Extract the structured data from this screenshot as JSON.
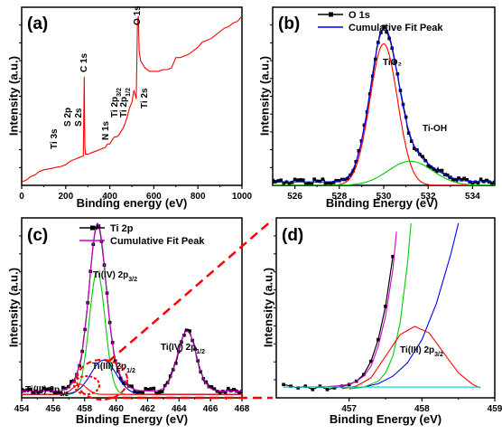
{
  "chart_data": [
    {
      "id": "a",
      "type": "line",
      "panel_label": "(a)",
      "xlabel": "Binding energy (eV)",
      "ylabel": "Intensity (a.u.)",
      "xlim": [
        0,
        1000
      ],
      "xticks": [
        0,
        200,
        400,
        600,
        800,
        1000
      ],
      "y_ticks_labeled": false,
      "series": [
        {
          "color": "#ff0000",
          "x": [
            0,
            20,
            40,
            60,
            80,
            100,
            120,
            140,
            160,
            180,
            200,
            220,
            240,
            260,
            280,
            284,
            287,
            290,
            300,
            320,
            340,
            360,
            380,
            390,
            400,
            410,
            420,
            430,
            440,
            450,
            460,
            470,
            480,
            490,
            500,
            510,
            520,
            526,
            530,
            533,
            540,
            560,
            580,
            600,
            620,
            640,
            660,
            680,
            700,
            720,
            740,
            760,
            780,
            800,
            820,
            840,
            860,
            880,
            900,
            920,
            940,
            960,
            980,
            1000
          ],
          "y": [
            2,
            3,
            5,
            6,
            8,
            9,
            9.5,
            10,
            10.5,
            11,
            12,
            14,
            15,
            16,
            17,
            63,
            22,
            18,
            18,
            19,
            20,
            21,
            22,
            24,
            24,
            26,
            28,
            28,
            29,
            31,
            33,
            36,
            40,
            45,
            48,
            55,
            50,
            95,
            98,
            78,
            72,
            68,
            66,
            66,
            66,
            67,
            67,
            68,
            74,
            74,
            75,
            76,
            78,
            80,
            83,
            84,
            85,
            87,
            89,
            91,
            92,
            94,
            95,
            98
          ]
        }
      ],
      "peak_labels": [
        {
          "text": "O 1s",
          "x": 530
        },
        {
          "text": "C 1s",
          "x": 285
        },
        {
          "text": "Ti 2s",
          "x": 565
        },
        {
          "text": "Ti 3s",
          "x": 60
        },
        {
          "text": "S 2p",
          "x": 162
        },
        {
          "text": "S 2s",
          "x": 230
        },
        {
          "text": "N 1s",
          "x": 400
        },
        {
          "text": "Ti 2p3/2",
          "x": 458
        },
        {
          "text": "Ti 2p1/2",
          "x": 464
        }
      ]
    },
    {
      "id": "b",
      "type": "line",
      "panel_label": "(b)",
      "xlabel": "Binding Energy (eV)",
      "ylabel": "Intensity (a.u.)",
      "xlim": [
        525,
        535
      ],
      "xticks": [
        526,
        528,
        530,
        532,
        534
      ],
      "y_ticks_labeled": false,
      "legend": {
        "placement": "top-right",
        "entries": [
          "O 1s",
          "Cumulative Fit Peak"
        ]
      },
      "series": [
        {
          "name": "O 1s",
          "color": "#000000",
          "marker": "square",
          "peaks": [
            {
              "center": 530.0,
              "sigma": 0.62,
              "height": 82
            },
            {
              "center": 531.2,
              "sigma": 1.0,
              "height": 14
            }
          ],
          "baseline": 2
        },
        {
          "name": "Cumulative Fit Peak",
          "color": "#0000ff",
          "peaks": [
            {
              "center": 530.0,
              "sigma": 0.62,
              "height": 82
            },
            {
              "center": 531.2,
              "sigma": 1.0,
              "height": 14
            }
          ],
          "baseline": 2
        },
        {
          "color": "#ff0000",
          "peaks": [
            {
              "center": 530.0,
              "sigma": 0.62,
              "height": 82
            }
          ],
          "baseline": 0
        },
        {
          "color": "#00cc00",
          "peaks": [
            {
              "center": 531.2,
              "sigma": 1.0,
              "height": 14
            }
          ],
          "baseline": 0
        }
      ],
      "peak_labels": [
        {
          "text": "TiO₂",
          "x": 530.2
        },
        {
          "text": "Ti-OH",
          "x": 531.6
        }
      ]
    },
    {
      "id": "c",
      "type": "line",
      "panel_label": "(c)",
      "xlabel": "Binding Energy (eV)",
      "ylabel": "Intensity (a.u.)",
      "xlim": [
        454,
        468
      ],
      "xticks": [
        454,
        456,
        458,
        460,
        462,
        464,
        466,
        468
      ],
      "y_ticks_labeled": false,
      "legend": {
        "placement": "top-right",
        "entries": [
          "Ti 2p",
          "Cumulative Fit Peak"
        ]
      },
      "series": [
        {
          "name": "Ti 2p",
          "color": "#000000",
          "marker": "square",
          "peaks": [
            {
              "center": 458.8,
              "sigma": 0.5,
              "height": 80
            },
            {
              "center": 459.2,
              "sigma": 0.8,
              "height": 20
            },
            {
              "center": 464.5,
              "sigma": 0.6,
              "height": 35
            },
            {
              "center": 457.7,
              "sigma": 0.45,
              "height": 6
            }
          ],
          "baseline": 2
        },
        {
          "name": "Cumulative Fit Peak",
          "color": "#cc00cc",
          "peaks": [
            {
              "center": 458.8,
              "sigma": 0.5,
              "height": 80
            },
            {
              "center": 459.2,
              "sigma": 0.8,
              "height": 20
            },
            {
              "center": 464.5,
              "sigma": 0.6,
              "height": 35
            },
            {
              "center": 457.7,
              "sigma": 0.45,
              "height": 6
            }
          ],
          "baseline": 2
        },
        {
          "color": "#00cc00",
          "peaks": [
            {
              "center": 458.8,
              "sigma": 0.5,
              "height": 72
            }
          ],
          "baseline": 0
        },
        {
          "color": "#0000ff",
          "peaks": [
            {
              "center": 459.2,
              "sigma": 0.8,
              "height": 20
            }
          ],
          "baseline": 0
        },
        {
          "color": "#ff0000",
          "peaks": [
            {
              "center": 457.7,
              "sigma": 0.45,
              "height": 6
            }
          ],
          "baseline": 0
        }
      ],
      "peak_labels": [
        {
          "text": "Ti(IV) 2p3/2",
          "x": 459.4
        },
        {
          "text": "Ti(IV) 2p1/2",
          "x": 464.5
        },
        {
          "text": "Ti(III) 2p1/2",
          "x": 459.5
        },
        {
          "text": "Ti(III) 2p3/2",
          "x": 455.3
        }
      ]
    },
    {
      "id": "d",
      "type": "line",
      "panel_label": "(d)",
      "xlabel": "Binding Energy (eV)",
      "ylabel": "Intensity (a.u.)",
      "xlim": [
        456,
        459
      ],
      "xticks": [
        457,
        458,
        459
      ],
      "y_ticks_labeled": false,
      "series": [
        {
          "color": "#000000",
          "marker": "square",
          "x": [
            456.1,
            456.2,
            456.3,
            456.4,
            456.5,
            456.6,
            456.7,
            456.8,
            456.9,
            457.0,
            457.1,
            457.2,
            457.3,
            457.4,
            457.5,
            457.6
          ],
          "y": [
            3,
            2,
            1,
            2,
            0,
            2,
            0,
            1,
            2,
            3,
            5,
            9,
            17,
            30,
            50,
            80
          ]
        },
        {
          "color": "#cc00cc",
          "x": [
            456.1,
            456.3,
            456.5,
            456.7,
            456.9,
            457.0,
            457.1,
            457.2,
            457.3,
            457.4,
            457.5,
            457.6,
            457.65
          ],
          "y": [
            1.5,
            1.5,
            1.6,
            1.8,
            2.4,
            3.2,
            5,
            8,
            14,
            26,
            44,
            72,
            95
          ]
        },
        {
          "color": "#0000ff",
          "x": [
            457.0,
            457.2,
            457.4,
            457.6,
            457.8,
            458.0,
            458.2,
            458.4,
            458.5
          ],
          "y": [
            0.5,
            1.5,
            3.5,
            8,
            16,
            30,
            52,
            82,
            100
          ]
        },
        {
          "color": "#00cc00",
          "x": [
            457.0,
            457.2,
            457.4,
            457.5,
            457.6,
            457.7,
            457.8,
            457.85
          ],
          "y": [
            0.5,
            1.5,
            5,
            10,
            20,
            40,
            75,
            100
          ]
        },
        {
          "color": "#ff0000",
          "x": [
            456.9,
            457.1,
            457.3,
            457.5,
            457.7,
            457.9,
            458.1,
            458.3,
            458.5,
            458.7,
            458.8
          ],
          "y": [
            0.5,
            2,
            7,
            20,
            33,
            38,
            34,
            22,
            10,
            3,
            1
          ]
        },
        {
          "color": "#00cccc",
          "x": [
            456.1,
            458.8
          ],
          "y": [
            1.5,
            1.5
          ]
        }
      ],
      "peak_labels": [
        {
          "text": "Ti(III) 2p3/2",
          "x": 458.0
        }
      ]
    }
  ]
}
